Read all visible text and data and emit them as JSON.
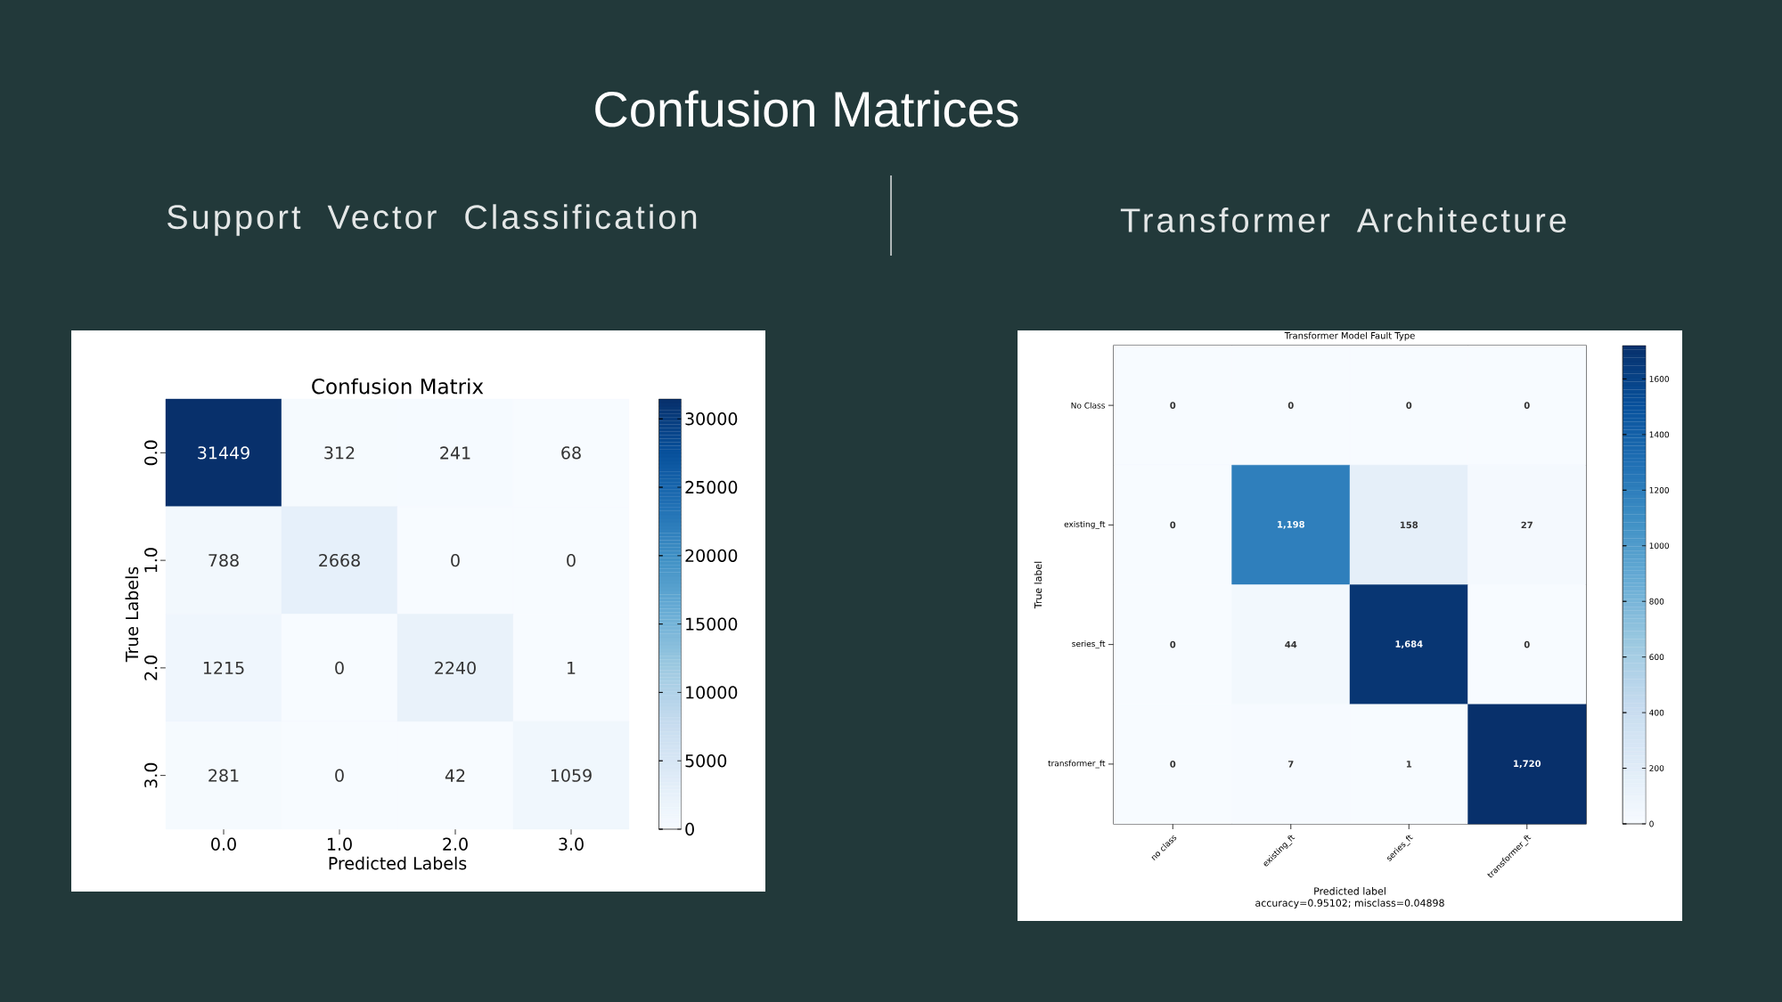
{
  "chart_data": [
    {
      "type": "heatmap",
      "title": "Confusion Matrix",
      "subtitle": "Support Vector Classification",
      "xlabel": "Predicted Labels",
      "ylabel": "True Labels",
      "categories": [
        "0.0",
        "1.0",
        "2.0",
        "3.0"
      ],
      "y_categories": [
        "0.0",
        "1.0",
        "2.0",
        "3.0"
      ],
      "cells": [
        [
          31449,
          312,
          241,
          68
        ],
        [
          788,
          2668,
          0,
          0
        ],
        [
          1215,
          0,
          2240,
          1
        ],
        [
          281,
          0,
          42,
          1059
        ]
      ],
      "data_labels": true,
      "clim": [
        0,
        31449
      ],
      "cticks": [
        0,
        5000,
        10000,
        15000,
        20000,
        25000,
        30000
      ],
      "annotations": [
        "Confusion Matrices"
      ]
    },
    {
      "type": "heatmap",
      "title": "Transformer Model Fault Type",
      "subtitle": "Transformer Architecture",
      "xlabel": "Predicted label",
      "ylabel": "True label",
      "categories": [
        "no class",
        "existing_ft",
        "series_ft",
        "transformer_ft"
      ],
      "y_categories": [
        "No Class",
        "existing_ft",
        "series_ft",
        "transformer_ft"
      ],
      "cells": [
        [
          0,
          0,
          0,
          0
        ],
        [
          0,
          1198,
          158,
          27
        ],
        [
          0,
          44,
          1684,
          0
        ],
        [
          0,
          7,
          1,
          1720
        ]
      ],
      "cell_labels": [
        [
          "0",
          "0",
          "0",
          "0"
        ],
        [
          "0",
          "1,198",
          "158",
          "27"
        ],
        [
          "0",
          "44",
          "1,684",
          "0"
        ],
        [
          "0",
          "7",
          "1",
          "1,720"
        ]
      ],
      "clim": [
        0,
        1720
      ],
      "cticks": [
        0,
        200,
        400,
        600,
        800,
        1000,
        1200,
        1400,
        1600
      ],
      "annotations": [
        "accuracy=0.95102; misclass=0.04898"
      ]
    }
  ]
}
